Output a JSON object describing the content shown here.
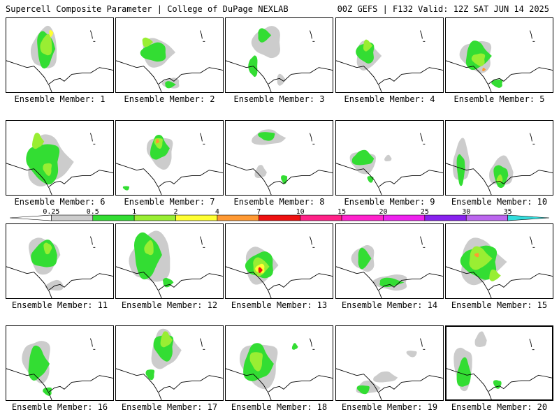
{
  "header": {
    "title_left": "Supercell Composite Parameter | College of DuPage NEXLAB",
    "title_right": "00Z GEFS | F132 Valid: 12Z SAT JUN 14 2025"
  },
  "legend": {
    "thresholds": [
      "0.25",
      "0.5",
      "1",
      "2",
      "4",
      "7",
      "10",
      "15",
      "20",
      "25",
      "30",
      "35"
    ],
    "colors": [
      "#ffffff",
      "#cccccc",
      "#33dd33",
      "#99ee33",
      "#ffff33",
      "#ff9933",
      "#ee1111",
      "#ff2288",
      "#ff22cc",
      "#ee22ee",
      "#8822ee",
      "#bb66ee",
      "#33dddd"
    ]
  },
  "panels": [
    {
      "label": "Ensemble Member: 1"
    },
    {
      "label": "Ensemble Member: 2"
    },
    {
      "label": "Ensemble Member: 3"
    },
    {
      "label": "Ensemble Member: 4"
    },
    {
      "label": "Ensemble Member: 5"
    },
    {
      "label": "Ensemble Member: 6"
    },
    {
      "label": "Ensemble Member: 7"
    },
    {
      "label": "Ensemble Member: 8"
    },
    {
      "label": "Ensemble Member: 9"
    },
    {
      "label": "Ensemble Member: 10"
    },
    {
      "label": "Ensemble Member: 11"
    },
    {
      "label": "Ensemble Member: 12"
    },
    {
      "label": "Ensemble Member: 13"
    },
    {
      "label": "Ensemble Member: 14"
    },
    {
      "label": "Ensemble Member: 15"
    },
    {
      "label": "Ensemble Member: 16"
    },
    {
      "label": "Ensemble Member: 17"
    },
    {
      "label": "Ensemble Member: 18"
    },
    {
      "label": "Ensemble Member: 19"
    },
    {
      "label": "Ensemble Member: 20"
    }
  ],
  "selected_member": "Ensemble Member: 20"
}
